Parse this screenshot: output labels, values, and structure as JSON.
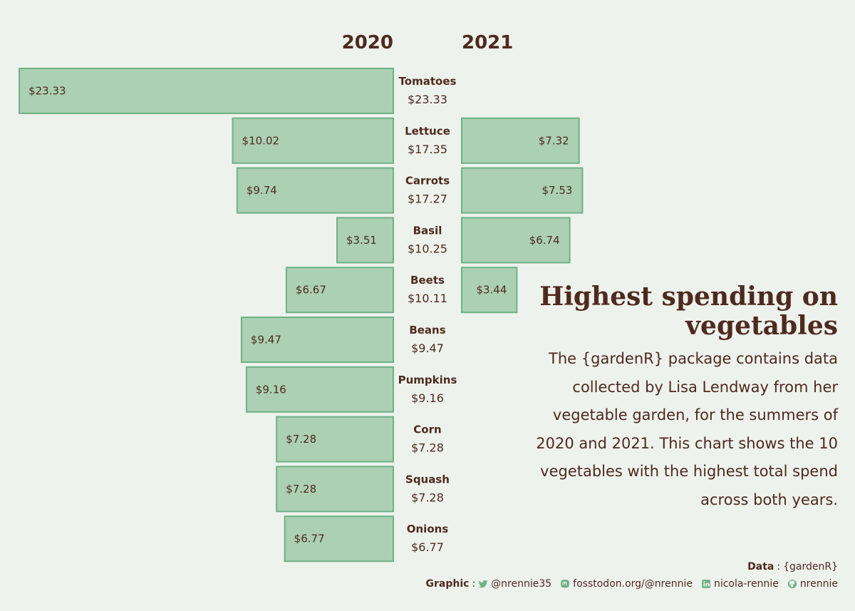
{
  "chart_data": {
    "type": "bar",
    "title": "Highest spending on vegetables",
    "subtitle": "The {gardenR} package contains data collected by Lisa Lendway from her vegetable garden, for the summers of 2020 and 2021. This chart shows the 10 vegetables with the highest total spend across both years.",
    "categories": [
      "Tomatoes",
      "Lettuce",
      "Carrots",
      "Basil",
      "Beets",
      "Beans",
      "Pumpkins",
      "Corn",
      "Squash",
      "Onions"
    ],
    "totals": [
      "$23.33",
      "$17.35",
      "$17.27",
      "$10.25",
      "$10.11",
      "$9.47",
      "$9.16",
      "$7.28",
      "$7.28",
      "$6.77"
    ],
    "series": [
      {
        "name": "2020",
        "values": [
          23.33,
          10.02,
          9.74,
          3.51,
          6.67,
          9.47,
          9.16,
          7.28,
          7.28,
          6.77
        ]
      },
      {
        "name": "2021",
        "values": [
          0,
          7.32,
          7.53,
          6.74,
          3.44,
          0,
          0,
          0,
          0,
          0
        ]
      }
    ],
    "value_labels_2020": [
      "$23.33",
      "$10.02",
      "$9.74",
      "$3.51",
      "$6.67",
      "$9.47",
      "$9.16",
      "$7.28",
      "$7.28",
      "$6.77"
    ],
    "value_labels_2021": [
      "",
      "$7.32",
      "$7.53",
      "$6.74",
      "$3.44",
      "",
      "",
      "",
      "",
      ""
    ],
    "colors": {
      "bar_fill": "#abd0b4",
      "bar_stroke": "#6fb186",
      "text": "#4e2a1e",
      "background": "#eef2ec"
    }
  },
  "caption": {
    "data_label": "Data",
    "data_source": "{gardenR}",
    "graphic_label": "Graphic",
    "twitter": "@nrennie35",
    "mastodon": "fosstodon.org/@nrennie",
    "linkedin": "nicola-rennie",
    "github": "nrennie",
    "icons": [
      "twitter-icon",
      "mastodon-icon",
      "linkedin-icon",
      "github-icon"
    ]
  }
}
